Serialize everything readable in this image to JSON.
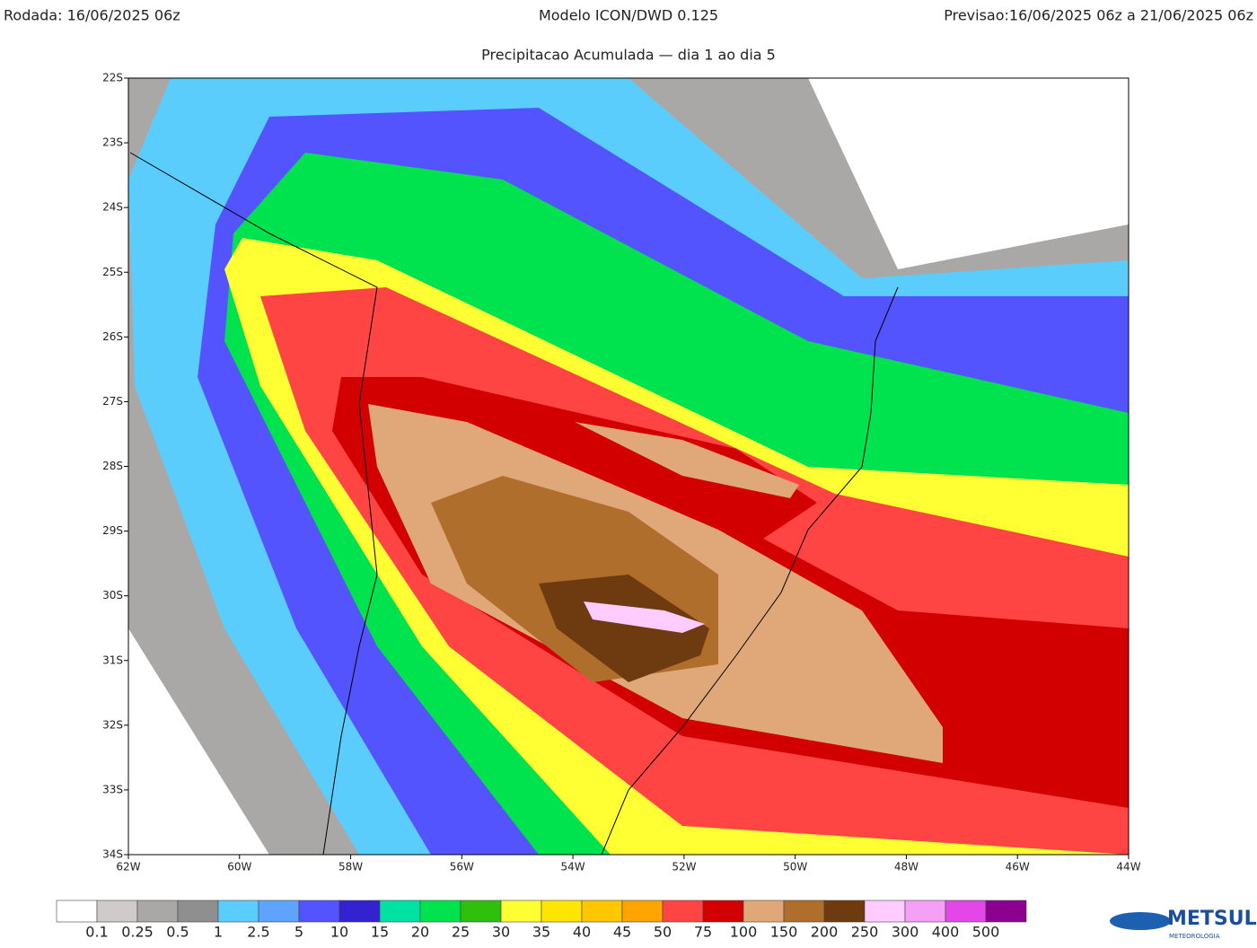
{
  "header": {
    "run": "Rodada: 16/06/2025 06z",
    "model": "Modelo ICON/DWD 0.125",
    "forecast": "Previsao:16/06/2025 06z a 21/06/2025 06z",
    "subtitle": "Precipitacao Acumulada — dia 1 ao dia 5"
  },
  "map": {
    "lat_labels": [
      "22S",
      "23S",
      "24S",
      "25S",
      "26S",
      "27S",
      "28S",
      "29S",
      "30S",
      "31S",
      "32S",
      "33S",
      "34S"
    ],
    "lon_labels": [
      "62W",
      "60W",
      "58W",
      "56W",
      "54W",
      "52W",
      "50W",
      "48W",
      "46W",
      "44W"
    ]
  },
  "colorbar": {
    "levels": [
      0.1,
      0.25,
      0.5,
      1,
      2.5,
      5,
      10,
      15,
      20,
      25,
      30,
      35,
      40,
      45,
      50,
      75,
      100,
      150,
      200,
      250,
      300,
      400,
      500
    ],
    "colors": [
      "#ffffff",
      "#cfcbcb",
      "#aaa7a7",
      "#8f8f8f",
      "#5bcdfd",
      "#5ea3ff",
      "#5454ff",
      "#3322d0",
      "#00e2a4",
      "#00e24e",
      "#2fc00c",
      "#ffff33",
      "#ffe500",
      "#ffc700",
      "#ffa400",
      "#ff4444",
      "#d20000",
      "#e0a878",
      "#b06e2c",
      "#6e3a10",
      "#ffccff",
      "#f4a0f4",
      "#e446e8",
      "#8c0090"
    ]
  },
  "logo": {
    "name": "METSUL",
    "sub": "METEOROLOGIA"
  }
}
